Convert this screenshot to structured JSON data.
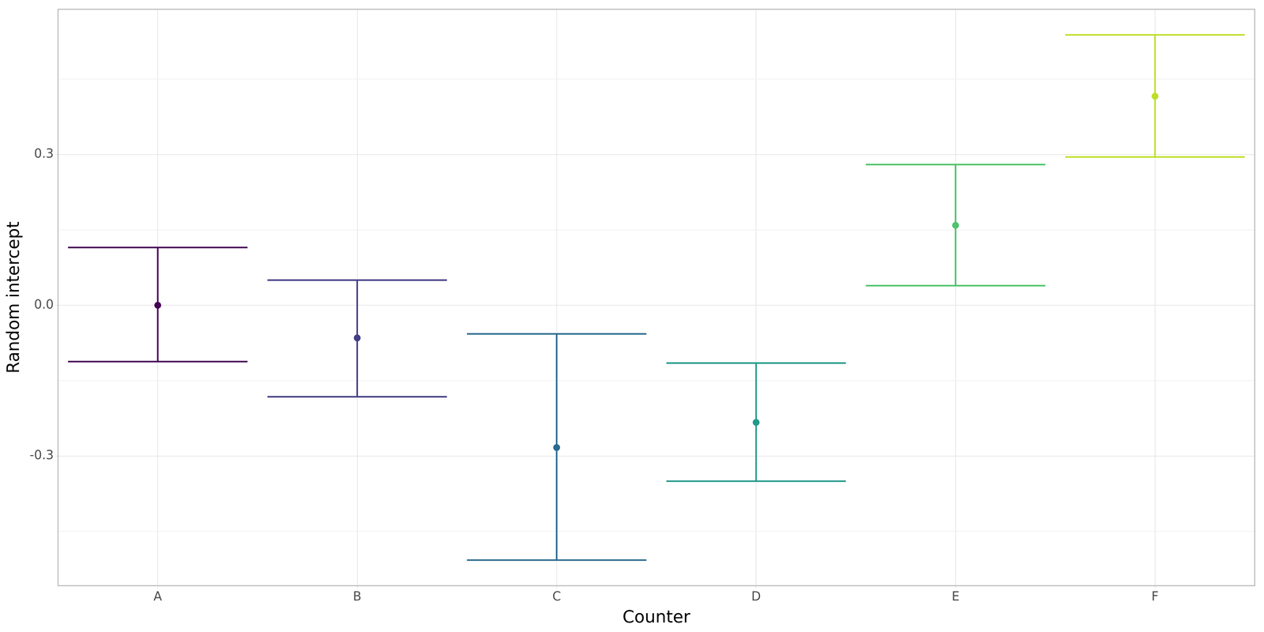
{
  "chart_data": {
    "type": "scatter",
    "xlabel": "Counter",
    "ylabel": "Random intercept",
    "categories": [
      "A",
      "B",
      "C",
      "D",
      "E",
      "F"
    ],
    "values": [
      0.0,
      -0.065,
      -0.283,
      -0.233,
      0.159,
      0.416
    ],
    "lower": [
      -0.112,
      -0.182,
      -0.507,
      -0.35,
      0.039,
      0.295
    ],
    "upper": [
      0.115,
      0.05,
      -0.057,
      -0.115,
      0.28,
      0.538
    ],
    "colors": [
      "#440154",
      "#433e85",
      "#2a6a8e",
      "#21998a",
      "#4ec36b",
      "#bddf26"
    ],
    "ylim": [
      -0.558,
      0.589
    ],
    "yticks": [
      -0.3,
      {
        "value": 0,
        "label": "0.0"
      },
      0.3
    ],
    "grid": true
  }
}
